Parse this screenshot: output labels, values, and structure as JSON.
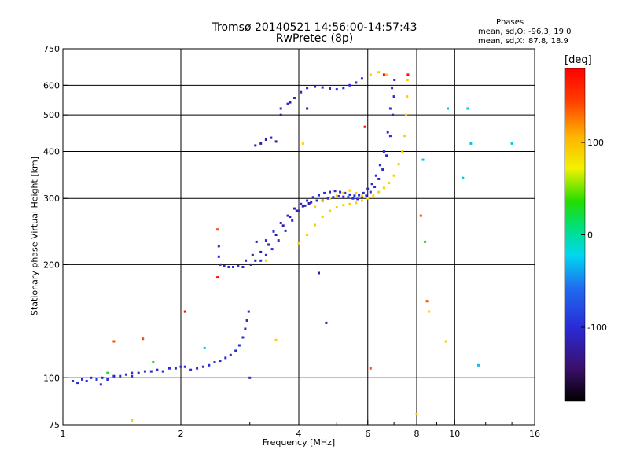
{
  "chart_data": {
    "type": "scatter",
    "title": "Tromsø 20140521 14:56:00-14:57:43",
    "subtitle": "RwPretec (8p)",
    "xlabel": "Frequency [MHz]",
    "ylabel": "Stationary phase Virtual Height [km]",
    "xscale": "log",
    "yscale": "log",
    "xlim": [
      1,
      16
    ],
    "ylim": [
      75,
      750
    ],
    "x_ticks": [
      1,
      2,
      4,
      6,
      8,
      10,
      16
    ],
    "x_tick_labels": [
      "1",
      "2",
      "4",
      "6",
      "8",
      "10",
      "16"
    ],
    "y_ticks": [
      75,
      100,
      200,
      300,
      400,
      500,
      600,
      750
    ],
    "y_tick_labels": [
      "75",
      "100",
      "200",
      "300",
      "400",
      "500",
      "600",
      "750"
    ],
    "grid": true,
    "phase_stats": {
      "heading": "Phases",
      "o_label": "mean, sd,O:",
      "o_values": "-96.3, 19.0",
      "x_label": "mean, sd,X:",
      "x_values": "87.8, 18.9"
    },
    "colorbar": {
      "unit": "[deg]",
      "range": [
        -180,
        180
      ],
      "ticks": [
        100,
        0,
        -100
      ],
      "tick_labels": [
        "100",
        "0",
        "-100"
      ]
    },
    "series": [
      {
        "phase": -100,
        "points": [
          [
            1.06,
            98
          ],
          [
            1.09,
            97
          ],
          [
            1.12,
            99
          ],
          [
            1.15,
            98
          ],
          [
            1.18,
            100
          ],
          [
            1.22,
            99
          ],
          [
            1.26,
            100
          ],
          [
            1.3,
            99
          ],
          [
            1.35,
            101
          ],
          [
            1.4,
            101
          ],
          [
            1.45,
            102
          ],
          [
            1.5,
            103
          ],
          [
            1.56,
            103
          ],
          [
            1.62,
            104
          ],
          [
            1.68,
            104
          ],
          [
            1.74,
            105
          ],
          [
            1.8,
            104
          ],
          [
            1.87,
            106
          ],
          [
            1.94,
            106
          ],
          [
            2.0,
            107
          ],
          [
            2.05,
            107
          ],
          [
            2.12,
            105
          ],
          [
            2.2,
            106
          ],
          [
            2.28,
            107
          ],
          [
            2.36,
            108
          ],
          [
            2.44,
            110
          ],
          [
            2.52,
            111
          ],
          [
            2.6,
            113
          ],
          [
            2.68,
            115
          ],
          [
            2.76,
            118
          ],
          [
            2.82,
            122
          ],
          [
            2.88,
            128
          ],
          [
            2.92,
            135
          ],
          [
            2.95,
            142
          ],
          [
            2.98,
            150
          ],
          [
            2.5,
            224
          ],
          [
            2.5,
            210
          ],
          [
            2.52,
            200
          ],
          [
            2.58,
            198
          ],
          [
            2.65,
            197
          ],
          [
            2.72,
            197
          ],
          [
            2.8,
            198
          ],
          [
            2.88,
            197
          ],
          [
            2.93,
            205
          ],
          [
            3.2,
            205
          ],
          [
            3.3,
            212
          ],
          [
            3.42,
            220
          ],
          [
            3.55,
            232
          ],
          [
            3.7,
            246
          ],
          [
            3.85,
            262
          ],
          [
            4.0,
            278
          ],
          [
            4.15,
            287
          ],
          [
            4.3,
            293
          ],
          [
            4.45,
            296
          ],
          [
            4.6,
            296
          ],
          [
            4.75,
            300
          ],
          [
            4.9,
            302
          ],
          [
            5.05,
            304
          ],
          [
            5.2,
            303
          ],
          [
            5.35,
            302
          ],
          [
            5.5,
            300
          ],
          [
            5.65,
            299
          ],
          [
            5.8,
            302
          ],
          [
            5.95,
            305
          ],
          [
            6.1,
            312
          ],
          [
            6.25,
            322
          ],
          [
            6.4,
            338
          ],
          [
            6.55,
            358
          ],
          [
            6.7,
            390
          ],
          [
            6.85,
            440
          ],
          [
            6.95,
            500
          ],
          [
            7.0,
            560
          ],
          [
            7.02,
            620
          ],
          [
            3.3,
            232
          ],
          [
            3.45,
            245
          ],
          [
            3.6,
            258
          ],
          [
            3.75,
            270
          ],
          [
            3.9,
            282
          ],
          [
            4.05,
            290
          ],
          [
            4.2,
            296
          ],
          [
            4.35,
            302
          ],
          [
            4.5,
            306
          ],
          [
            4.65,
            310
          ],
          [
            4.8,
            312
          ],
          [
            4.95,
            314
          ],
          [
            5.1,
            312
          ],
          [
            5.25,
            310
          ],
          [
            5.4,
            307
          ],
          [
            5.55,
            305
          ],
          [
            5.7,
            306
          ],
          [
            5.85,
            310
          ],
          [
            6.0,
            318
          ],
          [
            6.15,
            328
          ],
          [
            6.3,
            345
          ],
          [
            6.45,
            368
          ],
          [
            6.6,
            400
          ],
          [
            6.75,
            450
          ],
          [
            6.85,
            520
          ],
          [
            6.92,
            590
          ],
          [
            3.6,
            520
          ],
          [
            3.75,
            535
          ],
          [
            3.9,
            555
          ],
          [
            4.05,
            575
          ],
          [
            4.2,
            590
          ],
          [
            4.4,
            595
          ],
          [
            4.6,
            592
          ],
          [
            4.8,
            588
          ],
          [
            5.0,
            585
          ],
          [
            5.2,
            590
          ],
          [
            5.4,
            600
          ],
          [
            5.6,
            610
          ],
          [
            5.8,
            625
          ],
          [
            3.0,
            100
          ],
          [
            1.5,
            101
          ],
          [
            1.25,
            96
          ]
        ]
      },
      {
        "phase": -120,
        "points": [
          [
            3.1,
            205
          ],
          [
            3.2,
            216
          ],
          [
            3.35,
            226
          ],
          [
            3.5,
            240
          ],
          [
            3.65,
            254
          ],
          [
            3.8,
            268
          ],
          [
            3.95,
            278
          ],
          [
            4.1,
            286
          ],
          [
            4.25,
            291
          ],
          [
            3.12,
            230
          ],
          [
            3.05,
            212
          ],
          [
            3.02,
            200
          ],
          [
            3.1,
            415
          ],
          [
            3.2,
            420
          ],
          [
            3.3,
            430
          ],
          [
            3.4,
            435
          ],
          [
            3.5,
            425
          ],
          [
            3.6,
            500
          ],
          [
            3.8,
            540
          ],
          [
            4.2,
            520
          ],
          [
            4.5,
            190
          ],
          [
            4.7,
            140
          ]
        ]
      },
      {
        "phase": 90,
        "points": [
          [
            4.0,
            228
          ],
          [
            4.2,
            240
          ],
          [
            4.4,
            255
          ],
          [
            4.6,
            268
          ],
          [
            4.8,
            278
          ],
          [
            5.0,
            284
          ],
          [
            5.2,
            288
          ],
          [
            5.4,
            290
          ],
          [
            5.6,
            292
          ],
          [
            5.8,
            296
          ],
          [
            6.0,
            300
          ],
          [
            6.2,
            305
          ],
          [
            6.4,
            312
          ],
          [
            6.6,
            320
          ],
          [
            6.8,
            330
          ],
          [
            7.0,
            345
          ],
          [
            7.2,
            370
          ],
          [
            7.35,
            400
          ],
          [
            7.45,
            440
          ],
          [
            7.52,
            500
          ],
          [
            7.56,
            560
          ],
          [
            7.58,
            620
          ],
          [
            4.4,
            285
          ],
          [
            4.6,
            295
          ],
          [
            4.8,
            300
          ],
          [
            5.0,
            305
          ],
          [
            5.2,
            310
          ],
          [
            5.4,
            315
          ],
          [
            5.6,
            310
          ],
          [
            5.8,
            305
          ],
          [
            6.1,
            640
          ],
          [
            6.4,
            650
          ],
          [
            6.7,
            640
          ],
          [
            3.3,
            205
          ],
          [
            3.5,
            126
          ],
          [
            4.1,
            420
          ],
          [
            1.5,
            77
          ],
          [
            8.0,
            80
          ],
          [
            8.6,
            150
          ],
          [
            9.5,
            125
          ]
        ]
      },
      {
        "phase": 140,
        "points": [
          [
            2.48,
            248
          ],
          [
            1.35,
            125
          ],
          [
            1.6,
            127
          ],
          [
            6.1,
            106
          ],
          [
            8.2,
            270
          ],
          [
            8.5,
            160
          ]
        ]
      },
      {
        "phase": 175,
        "points": [
          [
            2.48,
            185
          ],
          [
            6.6,
            640
          ],
          [
            7.6,
            640
          ],
          [
            5.9,
            465
          ],
          [
            2.05,
            150
          ]
        ]
      },
      {
        "phase": -30,
        "points": [
          [
            2.3,
            120
          ],
          [
            9.6,
            520
          ],
          [
            11.0,
            420
          ],
          [
            14.0,
            420
          ],
          [
            10.8,
            520
          ],
          [
            11.5,
            108
          ],
          [
            8.3,
            380
          ],
          [
            10.5,
            340
          ]
        ]
      },
      {
        "phase": 30,
        "points": [
          [
            1.3,
            103
          ],
          [
            8.4,
            230
          ],
          [
            1.7,
            110
          ]
        ]
      }
    ]
  }
}
